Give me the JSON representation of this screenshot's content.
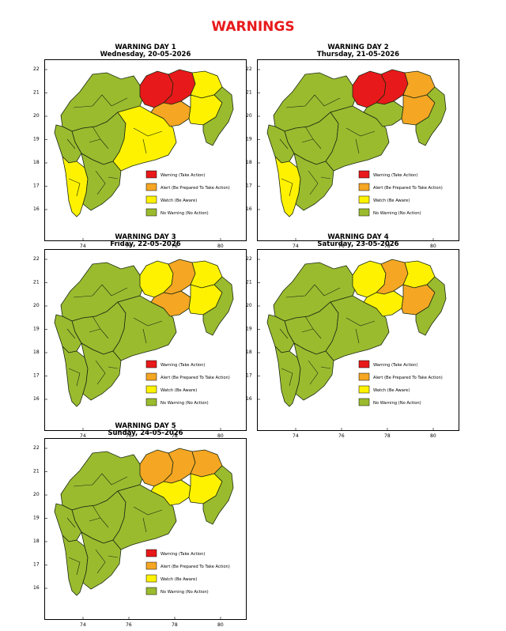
{
  "page_title": "WARNINGS",
  "colors": {
    "title": "#e8191a",
    "warning": "#e8191a",
    "alert": "#f5a623",
    "watch": "#fff200",
    "nowarning": "#9bbb2f",
    "border": "#1a2a10"
  },
  "legend": [
    {
      "key": "warning",
      "label": "Warning (Take Action)"
    },
    {
      "key": "alert",
      "label": "Alert (Be Prepared To Take Action)"
    },
    {
      "key": "watch",
      "label": "Watch (Be Aware)"
    },
    {
      "key": "nowarning",
      "label": "No Warning (No Action)"
    }
  ],
  "x_ticks": [
    "74",
    "76",
    "78",
    "80"
  ],
  "y_ticks": [
    "22",
    "21",
    "20",
    "19",
    "18",
    "17",
    "16"
  ],
  "panels": [
    {
      "title": "WARNING DAY 1",
      "date": "Wednesday, 20-05-2026",
      "zones": {
        "nw": "nowarning",
        "west": "nowarning",
        "konkan_n": "nowarning",
        "konkan_s": "watch",
        "central": "nowarning",
        "marathwada": "watch",
        "vid_w": "warning",
        "vid_c": "warning",
        "vid_ne": "watch",
        "vid_s": "alert",
        "vid_e": "watch",
        "vid_se": "nowarning"
      }
    },
    {
      "title": "WARNING DAY 2",
      "date": "Thursday, 21-05-2026",
      "zones": {
        "nw": "nowarning",
        "west": "nowarning",
        "konkan_n": "nowarning",
        "konkan_s": "watch",
        "central": "nowarning",
        "marathwada": "nowarning",
        "vid_w": "warning",
        "vid_c": "warning",
        "vid_ne": "alert",
        "vid_s": "nowarning",
        "vid_e": "alert",
        "vid_se": "nowarning"
      }
    },
    {
      "title": "WARNING DAY 3",
      "date": "Friday, 22-05-2026",
      "zones": {
        "nw": "nowarning",
        "west": "nowarning",
        "konkan_n": "nowarning",
        "konkan_s": "nowarning",
        "central": "nowarning",
        "marathwada": "nowarning",
        "vid_w": "watch",
        "vid_c": "alert",
        "vid_ne": "watch",
        "vid_s": "alert",
        "vid_e": "watch",
        "vid_se": "nowarning"
      }
    },
    {
      "title": "WARNING DAY 4",
      "date": "Saturday, 23-05-2026",
      "zones": {
        "nw": "nowarning",
        "west": "nowarning",
        "konkan_n": "nowarning",
        "konkan_s": "nowarning",
        "central": "nowarning",
        "marathwada": "nowarning",
        "vid_w": "watch",
        "vid_c": "alert",
        "vid_ne": "watch",
        "vid_s": "watch",
        "vid_e": "alert",
        "vid_se": "nowarning"
      }
    },
    {
      "title": "WARNING DAY 5",
      "date": "Sunday, 24-05-2026",
      "zones": {
        "nw": "nowarning",
        "west": "nowarning",
        "konkan_n": "nowarning",
        "konkan_s": "nowarning",
        "central": "nowarning",
        "marathwada": "nowarning",
        "vid_w": "alert",
        "vid_c": "alert",
        "vid_ne": "alert",
        "vid_s": "watch",
        "vid_e": "watch",
        "vid_se": "nowarning"
      }
    }
  ]
}
